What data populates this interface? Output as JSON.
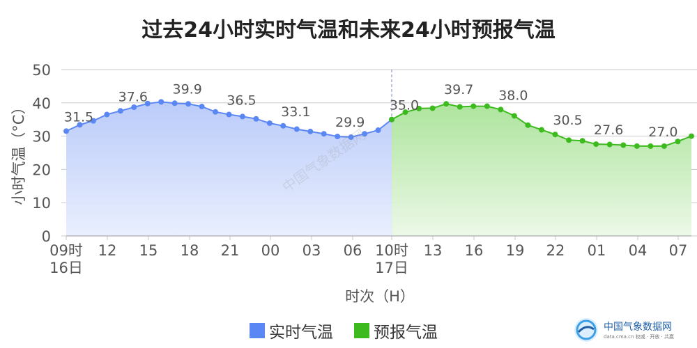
{
  "title": "过去24小时实时气温和未来24小时预报气温",
  "brand": {
    "name": "中国气象数据网",
    "sub": "data.cma.cn 权威 · 开放 · 共赢"
  },
  "watermark": "中国气象数据网",
  "colors": {
    "past": "#5b87f5",
    "past_fill": "#c4d3fb",
    "forecast": "#3cba1e",
    "forecast_fill": "#b6e8a6",
    "grid": "#c8c8c8",
    "divider": "#7a8bb5",
    "label": "#555555"
  },
  "chart_data": {
    "type": "area",
    "title": "过去24小时实时气温和未来24小时预报气温",
    "xlabel": "时次（H）",
    "ylabel": "小时气温（°C）",
    "ylim": [
      0,
      50
    ],
    "yticks": [
      0,
      10,
      20,
      30,
      40,
      50
    ],
    "grid": true,
    "legend_position": "bottom",
    "x_tick_labels": [
      {
        "label": "09时",
        "sub": "16日"
      },
      {
        "label": "12"
      },
      {
        "label": "15"
      },
      {
        "label": "18"
      },
      {
        "label": "21"
      },
      {
        "label": "00"
      },
      {
        "label": "03"
      },
      {
        "label": "06"
      },
      {
        "label": "10时",
        "sub": "17日"
      },
      {
        "label": "13"
      },
      {
        "label": "16"
      },
      {
        "label": "19"
      },
      {
        "label": "22"
      },
      {
        "label": "01"
      },
      {
        "label": "04"
      },
      {
        "label": "07"
      }
    ],
    "series": [
      {
        "name": "实时气温",
        "x_start": "16日09时",
        "values": [
          31.5,
          33.4,
          34.6,
          36.5,
          37.6,
          38.7,
          39.8,
          40.3,
          39.9,
          39.7,
          38.9,
          37.3,
          36.5,
          35.9,
          35.2,
          33.9,
          33.1,
          32.1,
          31.4,
          30.7,
          29.9,
          29.7,
          30.7,
          31.8,
          35.0
        ],
        "point_labels": [
          {
            "index": 0,
            "text": "31.5"
          },
          {
            "index": 4,
            "text": "37.6"
          },
          {
            "index": 8,
            "text": "39.9"
          },
          {
            "index": 12,
            "text": "36.5"
          },
          {
            "index": 16,
            "text": "33.1"
          },
          {
            "index": 20,
            "text": "29.9"
          },
          {
            "index": 24,
            "text": "35.0"
          }
        ]
      },
      {
        "name": "预报气温",
        "x_start": "17日10时",
        "values": [
          35.0,
          37.2,
          38.3,
          38.4,
          39.7,
          38.8,
          39.0,
          39.0,
          38.0,
          36.1,
          33.3,
          31.9,
          30.5,
          28.8,
          28.6,
          27.6,
          27.5,
          27.3,
          27.0,
          27.0,
          27.0,
          28.4,
          30.0
        ],
        "point_labels": [
          {
            "index": 4,
            "text": "39.7"
          },
          {
            "index": 8,
            "text": "38.0"
          },
          {
            "index": 12,
            "text": "30.5"
          },
          {
            "index": 15,
            "text": "27.6"
          },
          {
            "index": 19,
            "text": "27.0"
          }
        ]
      }
    ]
  }
}
